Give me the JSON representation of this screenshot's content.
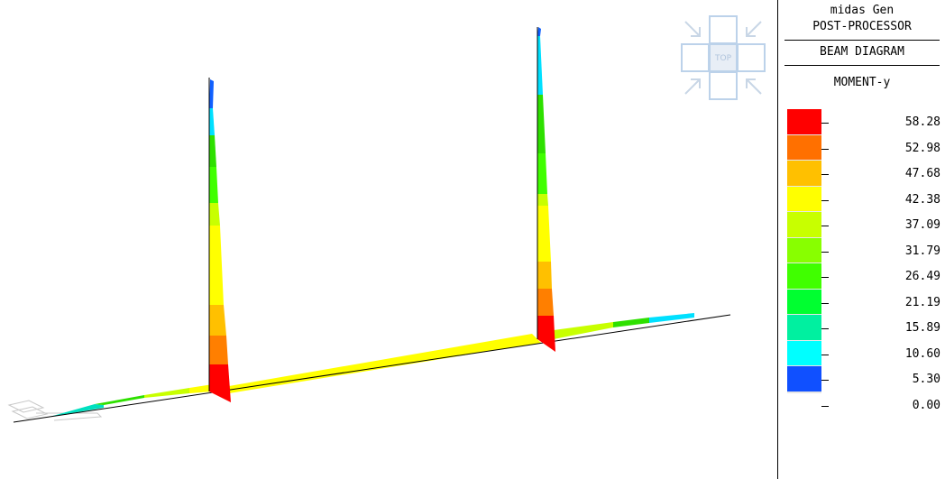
{
  "viewport": {
    "view_cube_label": "TOP",
    "diagram_colors": {
      "red": "#ff0000",
      "orange": "#ff7f00",
      "amber": "#ffc000",
      "yellow": "#ffff00",
      "yellow_green": "#c8ff00",
      "green": "#2ee000",
      "cyan": "#00e0ff",
      "blue": "#1060ff"
    }
  },
  "panel": {
    "app_name": "midas Gen",
    "app_subtitle": "POST-PROCESSOR",
    "diagram_type": "BEAM DIAGRAM",
    "component": "MOMENT-y",
    "legend": [
      {
        "value": "58.28",
        "color": "#ff0000"
      },
      {
        "value": "52.98",
        "color": "#ff7000"
      },
      {
        "value": "47.68",
        "color": "#ffc000"
      },
      {
        "value": "42.38",
        "color": "#ffff00"
      },
      {
        "value": "37.09",
        "color": "#c8ff00"
      },
      {
        "value": "31.79",
        "color": "#88ff00"
      },
      {
        "value": "26.49",
        "color": "#40ff00"
      },
      {
        "value": "21.19",
        "color": "#00ff30"
      },
      {
        "value": "15.89",
        "color": "#00f0a0"
      },
      {
        "value": "10.60",
        "color": "#00ffff"
      },
      {
        "value": "5.30",
        "color": "#0090ff"
      },
      {
        "value": "0.00",
        "color": ""
      }
    ],
    "legend_bottom_color": "#1050ff"
  }
}
